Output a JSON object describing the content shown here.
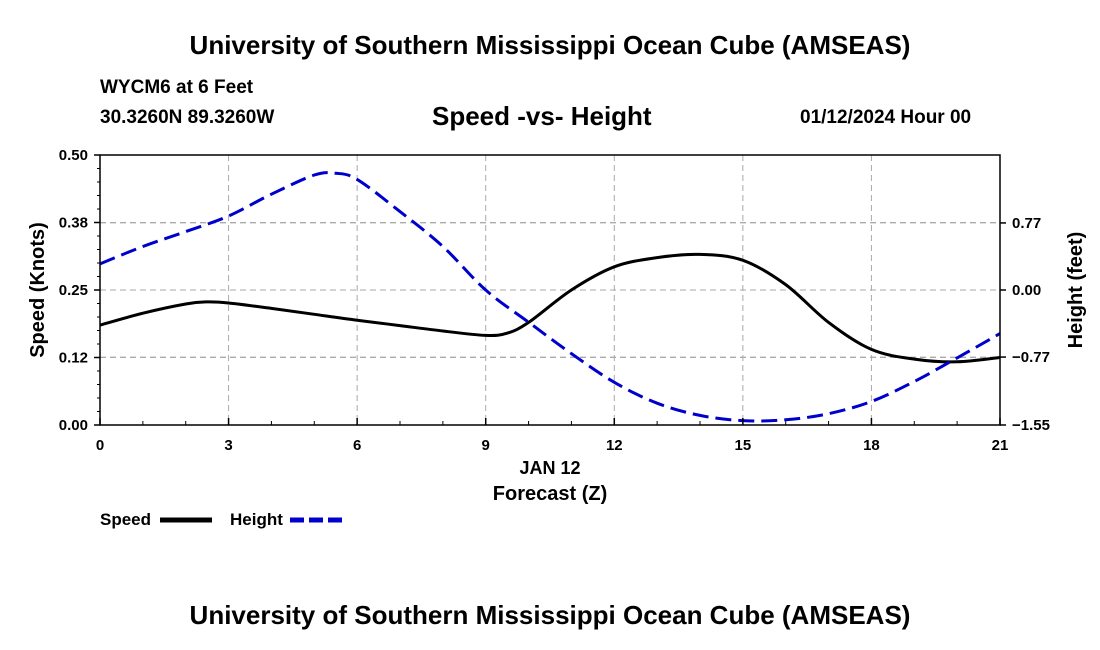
{
  "header": {
    "title": "University of Southern Mississippi Ocean Cube (AMSEAS)",
    "station": "WYCM6 at 6 Feet",
    "coords": "30.3260N  89.3260W",
    "subtitle": "Speed -vs- Height",
    "datetime": "01/12/2024 Hour 00"
  },
  "footer": {
    "title": "University of Southern Mississippi Ocean Cube (AMSEAS)"
  },
  "chart_data": {
    "type": "line",
    "title": "Speed -vs- Height",
    "xlabel": "Forecast (Z)",
    "xsublabel": "JAN 12",
    "ylabel": "Speed (Knots)",
    "y2label": "Height (feet)",
    "xlim": [
      0,
      21
    ],
    "ylim": [
      0,
      0.5
    ],
    "y2lim": [
      -1.55,
      1.55
    ],
    "x_ticks": [
      0,
      3,
      6,
      9,
      12,
      15,
      18,
      21
    ],
    "x_tick_labels": [
      "0",
      "3",
      "6",
      "9",
      "12",
      "15",
      "18",
      "21"
    ],
    "y_ticks": [
      0.0,
      0.125,
      0.25,
      0.375,
      0.5
    ],
    "y_tick_labels": [
      "0.00",
      "0.12",
      "0.25",
      "0.38",
      "0.50"
    ],
    "y2_ticks": [
      0.77,
      0.0,
      -0.77,
      -1.55
    ],
    "y2_tick_labels": [
      "0.77",
      "0.00",
      "−0.77",
      "−1.55"
    ],
    "grid": true,
    "legend_position": "bottom-left",
    "series": [
      {
        "name": "Speed",
        "axis": "left",
        "color": "#000000",
        "style": "solid",
        "x": [
          0,
          1,
          2,
          2.5,
          3,
          4,
          5,
          6,
          7,
          8,
          9,
          9.5,
          10,
          11,
          12,
          13,
          14,
          15,
          16,
          17,
          18,
          19,
          20,
          21
        ],
        "values": [
          0.185,
          0.207,
          0.224,
          0.228,
          0.226,
          0.216,
          0.205,
          0.194,
          0.184,
          0.174,
          0.166,
          0.17,
          0.19,
          0.25,
          0.293,
          0.31,
          0.316,
          0.305,
          0.26,
          0.19,
          0.14,
          0.122,
          0.117,
          0.125
        ]
      },
      {
        "name": "Height",
        "axis": "right",
        "color": "#0000cc",
        "style": "dashed",
        "x": [
          0,
          1,
          2,
          3,
          4,
          5,
          5.5,
          6,
          7,
          8,
          9,
          10,
          11,
          12,
          13,
          14,
          15,
          16,
          17,
          18,
          19,
          20,
          21
        ],
        "values": [
          0.3,
          0.5,
          0.67,
          0.85,
          1.1,
          1.32,
          1.34,
          1.27,
          0.9,
          0.5,
          0.0,
          -0.37,
          -0.73,
          -1.06,
          -1.3,
          -1.44,
          -1.5,
          -1.49,
          -1.42,
          -1.28,
          -1.05,
          -0.78,
          -0.5
        ]
      }
    ]
  }
}
